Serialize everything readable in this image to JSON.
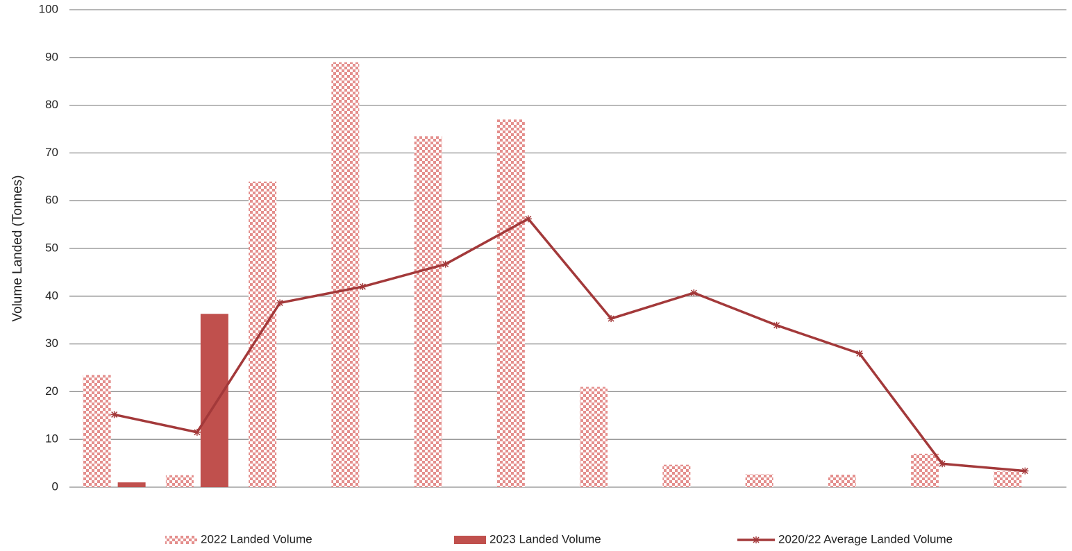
{
  "chart_data": {
    "type": "bar_line",
    "y_label": "Volume Landed (Tonnes)",
    "categories": [
      null,
      null,
      null,
      null,
      null,
      null,
      null,
      null,
      null,
      null,
      null,
      null
    ],
    "series": [
      {
        "name": "2022  Landed Volume",
        "type": "bar",
        "pattern": "checker",
        "color": "#e48f8d",
        "values": [
          23.5,
          2.5,
          64,
          89,
          73.5,
          77,
          21,
          4.7,
          2.7,
          2.6,
          7,
          3.3
        ]
      },
      {
        "name": "2023 Landed Volume",
        "type": "bar",
        "color": "#c0504d",
        "values": [
          1,
          36.3,
          null,
          null,
          null,
          null,
          null,
          null,
          null,
          null,
          null,
          null
        ]
      },
      {
        "name": "2020/22 Average Landed Volume",
        "type": "line",
        "color": "#a3393a",
        "values": [
          15.2,
          11.5,
          38.6,
          42,
          46.7,
          56.2,
          35.3,
          40.7,
          33.9,
          28,
          4.9,
          3.4
        ]
      }
    ],
    "ylim": [
      0,
      100
    ],
    "yticks": [
      0,
      10,
      20,
      30,
      40,
      50,
      60,
      70,
      80,
      90,
      100
    ],
    "grid": true,
    "legend": "bottom"
  }
}
